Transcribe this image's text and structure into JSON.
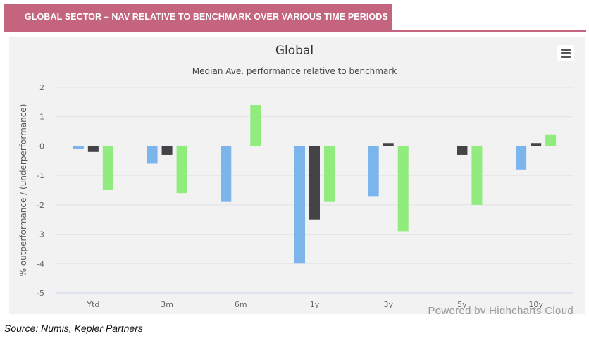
{
  "banner": {
    "title": "GLOBAL SECTOR – NAV RELATIVE TO BENCHMARK OVER VARIOUS TIME PERIODS"
  },
  "source": "Source: Numis, Kepler Partners",
  "credits": "Powered by Highcharts Cloud",
  "menu_icon": "hamburger-menu-icon",
  "colors": {
    "series": [
      "#7cb5ec",
      "#434348",
      "#90ed7d"
    ],
    "background": "#f2f2f2",
    "banner": "#c4647f"
  },
  "chart_data": {
    "type": "bar",
    "title": "Global",
    "subtitle": "Median Ave. performance relative to benchmark",
    "ylabel": "% outperformance / (underperformance)",
    "xlabel": "",
    "categories": [
      "Ytd",
      "3m",
      "6m",
      "1y",
      "3y",
      "5y",
      "10y"
    ],
    "ylim": [
      -5,
      2
    ],
    "yticks": [
      2,
      1,
      0,
      -1,
      -2,
      -3,
      -4,
      -5
    ],
    "grid": true,
    "legend": "none",
    "series": [
      {
        "values": [
          -0.1,
          -0.6,
          -1.9,
          -4.0,
          -1.7,
          null,
          -0.8
        ]
      },
      {
        "values": [
          -0.2,
          -0.3,
          null,
          -2.5,
          0.1,
          -0.3,
          0.1
        ]
      },
      {
        "values": [
          -1.5,
          -1.6,
          1.4,
          -1.9,
          -2.9,
          -2.0,
          0.4
        ]
      }
    ]
  }
}
